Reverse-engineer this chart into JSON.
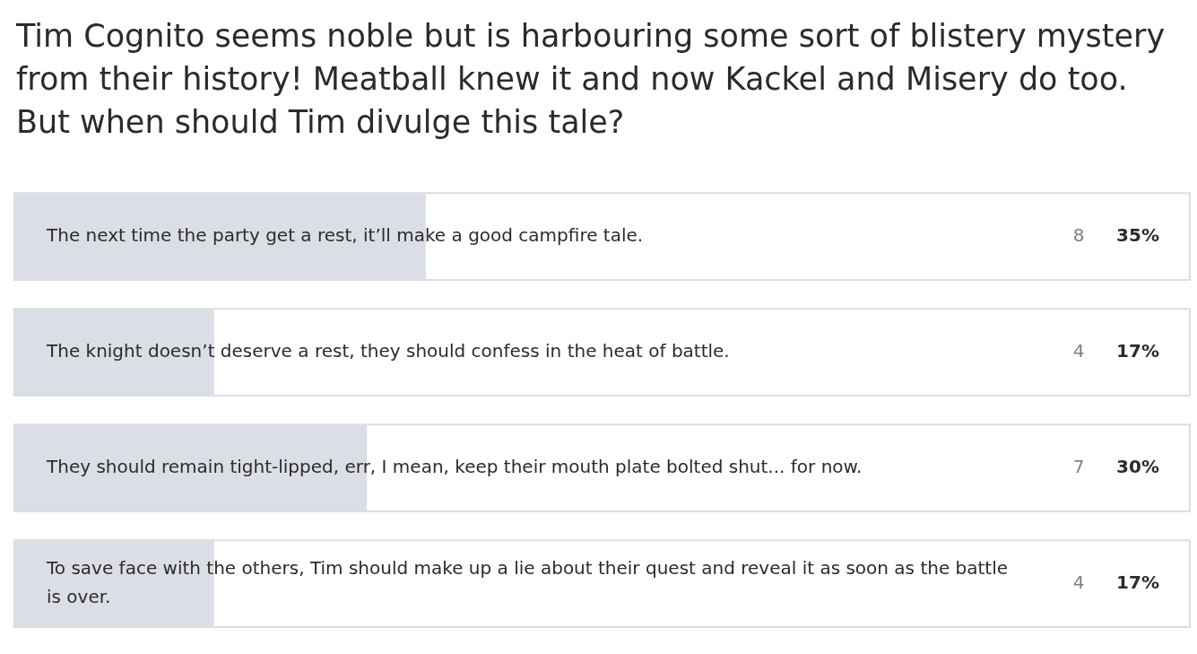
{
  "chart_data": {
    "type": "bar",
    "orientation": "horizontal",
    "title": "Tim Cognito seems noble but is harbouring some sort of blistery mystery from their history! Meatball knew it and now Kackel and Misery do too. But when should Tim divulge this tale?",
    "categories": [
      "The next time the party get a rest, it’ll make a good campfire tale.",
      "The knight doesn’t deserve a rest, they should confess in the heat of battle.",
      "They should remain tight-lipped, err, I mean, keep their mouth plate bolted shut... for now.",
      "To save face with the others, Tim should make up a lie about their quest and reveal it as soon as the battle is over."
    ],
    "values": [
      35,
      17,
      30,
      17
    ],
    "value_labels": [
      "35%",
      "17%",
      "30%",
      "17%"
    ],
    "color": "#dcdee5",
    "xlim": [
      0,
      100
    ],
    "tick_labels": false,
    "legend": false,
    "annotations": [
      "8",
      "4",
      "7",
      "4"
    ]
  }
}
